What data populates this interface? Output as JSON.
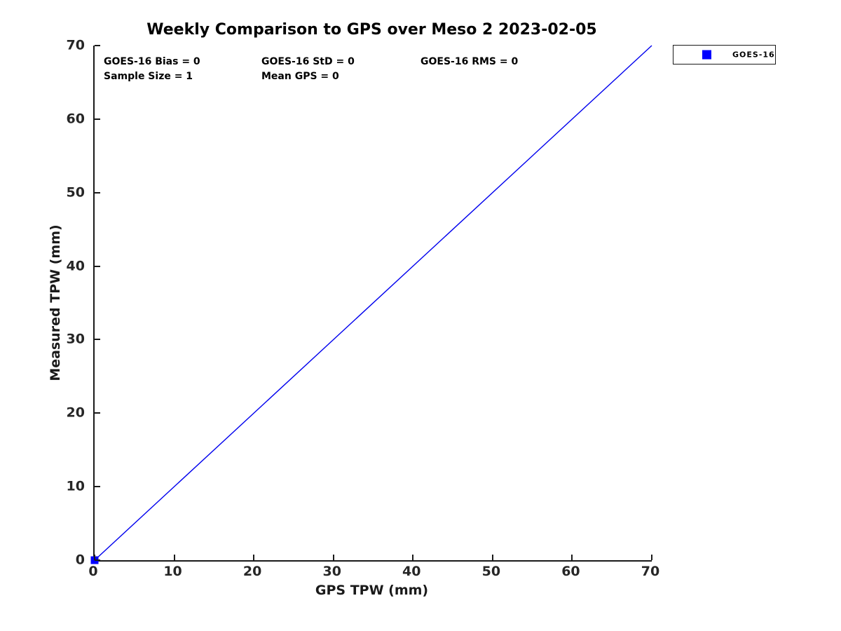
{
  "title": "Weekly Comparison to GPS over Meso 2 2023-02-05",
  "stats": {
    "bias": "GOES-16 Bias = 0",
    "std": "GOES-16 StD = 0",
    "rms": "GOES-16 RMS = 0",
    "sample_size": "Sample Size = 1",
    "mean_gps": "Mean GPS = 0"
  },
  "legend": {
    "position": "top-right-outside",
    "entries": [
      {
        "label": "GOES-16",
        "marker": "square",
        "marker_color": "#0000ff"
      }
    ]
  },
  "colors": {
    "line": "#0000ee",
    "marker": "#0000ff",
    "axis": "#1a1a1a",
    "tick_label": "#262626",
    "text": "#000000",
    "background": "#ffffff"
  },
  "chart_data": {
    "type": "scatter",
    "title": "Weekly Comparison to GPS over Meso 2 2023-02-05",
    "xlabel": "GPS TPW (mm)",
    "ylabel": "Measured TPW (mm)",
    "xlim": [
      0,
      70
    ],
    "ylim": [
      0,
      70
    ],
    "xticks": [
      0,
      10,
      20,
      30,
      40,
      50,
      60,
      70
    ],
    "yticks": [
      0,
      10,
      20,
      30,
      40,
      50,
      60,
      70
    ],
    "grid": false,
    "legend_position": "top-right-outside",
    "series": [
      {
        "name": "GOES-16",
        "type": "scatter",
        "marker": "square",
        "color": "#0000ff",
        "points": [
          [
            0,
            0
          ]
        ]
      },
      {
        "name": "identity-line",
        "type": "line",
        "color": "#0000ee",
        "points": [
          [
            0,
            0
          ],
          [
            70,
            70
          ]
        ]
      }
    ],
    "annotations": [
      "GOES-16 Bias = 0",
      "GOES-16 StD = 0",
      "GOES-16 RMS = 0",
      "Sample Size = 1",
      "Mean GPS = 0"
    ]
  }
}
